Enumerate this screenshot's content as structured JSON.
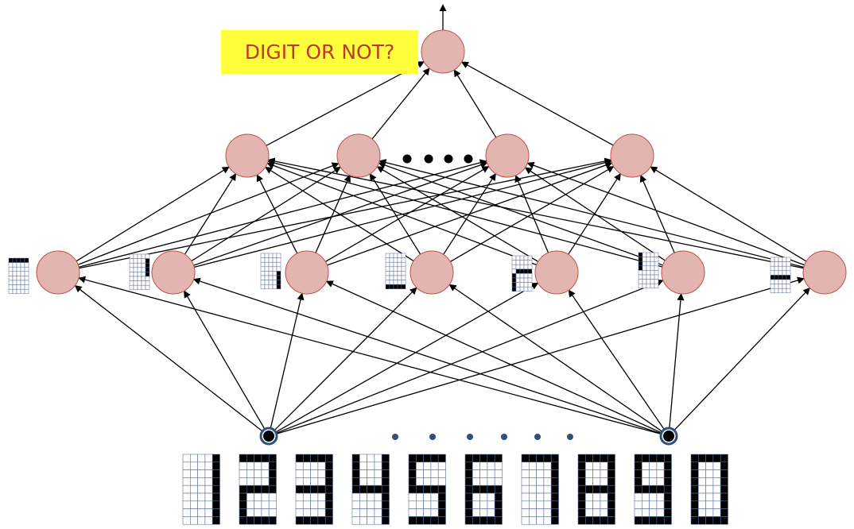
{
  "question_label": "DIGIT OR NOT?",
  "colors": {
    "neuron_fill": "#e2b5b0",
    "neuron_stroke": "#c0504d",
    "label_bg": "#ffff3b",
    "label_text": "#c0392b",
    "input_dot": "#2f4f7f",
    "arrow": "#000000",
    "pixel_on": "#000000",
    "pixel_grid": "#5a6f9a"
  },
  "network": {
    "output_neurons": 1,
    "hidden2_neurons_shown": 4,
    "hidden2_has_ellipsis": true,
    "hidden1_neurons": 7,
    "hidden1_receptive_fields": [
      "top-bar",
      "right-upper-bar",
      "right-lower-bar",
      "left-and-bottom-bar",
      "left-lower-and-bottom-bar",
      "left-upper-bar",
      "middle-bar"
    ],
    "input_nodes_shown": 2,
    "input_has_ellipsis": true
  },
  "digits": [
    "1",
    "2",
    "3",
    "4",
    "5",
    "6",
    "7",
    "8",
    "9",
    "0"
  ]
}
